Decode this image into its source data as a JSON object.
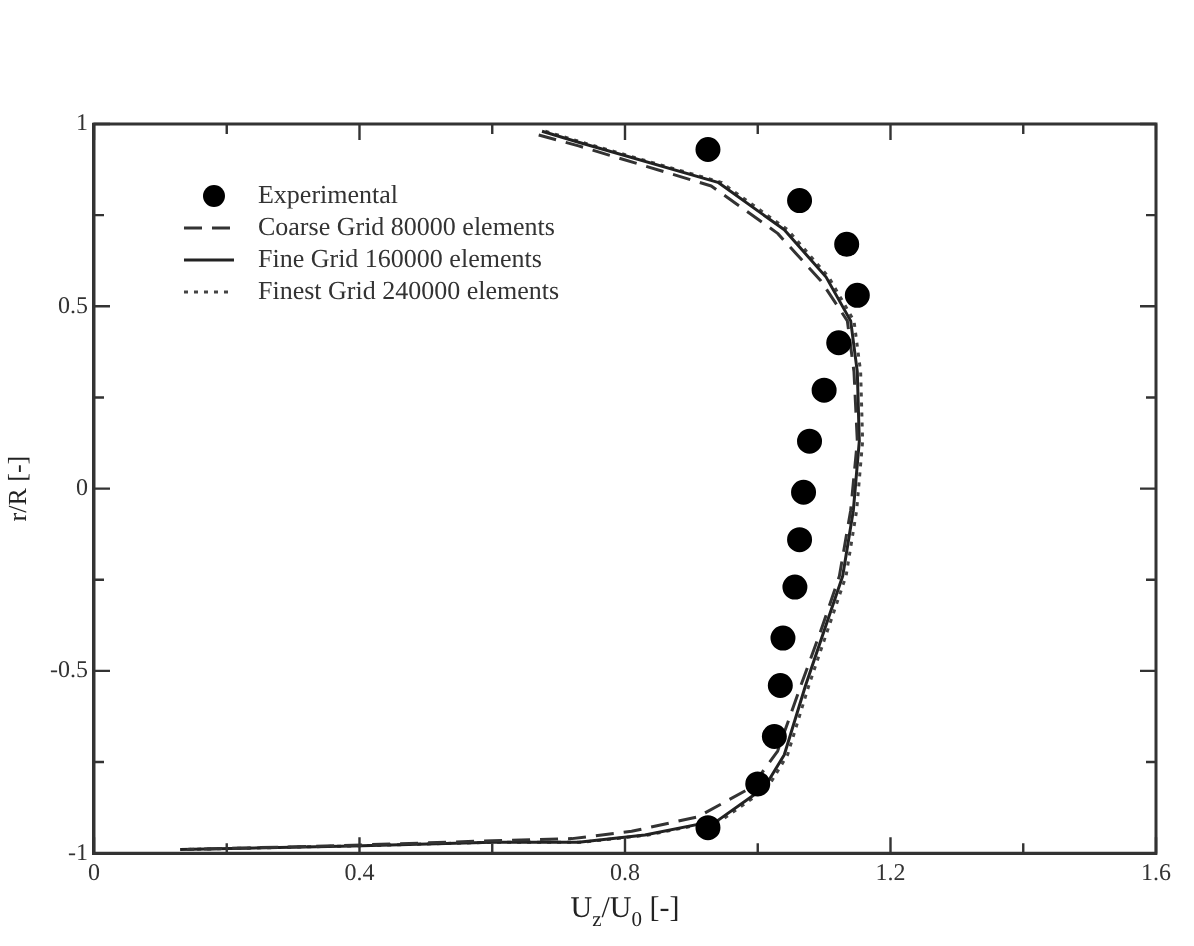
{
  "chart_data": {
    "type": "line",
    "xlabel": "U$_{z}$/U$_{0}$ [-]",
    "ylabel": "r/R [-]",
    "xlim": [
      0,
      1.6
    ],
    "ylim": [
      -1,
      1
    ],
    "xticks": [
      0,
      {
        "value": 0.2,
        "label": null
      },
      0.4,
      {
        "value": 0.6,
        "label": null
      },
      0.8,
      {
        "value": 1.0,
        "label": null
      },
      1.2,
      {
        "value": 1.4,
        "label": null
      },
      1.6
    ],
    "yticks": [
      -1,
      {
        "value": -0.75,
        "label": null
      },
      -0.5,
      {
        "value": -0.25,
        "label": null
      },
      0,
      {
        "value": 0.25,
        "label": null
      },
      0.5,
      {
        "value": 0.75,
        "label": null
      },
      1
    ],
    "grid": false,
    "legend": "top left",
    "series": [
      {
        "name": "Experimental",
        "type": "scatter",
        "marker": "circle",
        "color": "#000000",
        "x": [
          0.925,
          1.063,
          1.134,
          1.15,
          1.122,
          1.1,
          1.078,
          1.069,
          1.063,
          1.056,
          1.038,
          1.034,
          1.025,
          1.0,
          0.925
        ],
        "values": [
          0.93,
          0.79,
          0.67,
          0.53,
          0.4,
          0.27,
          0.13,
          -0.01,
          -0.14,
          -0.27,
          -0.41,
          -0.54,
          -0.68,
          -0.81,
          -0.93
        ]
      },
      {
        "name": "Coarse Grid 80000 elements",
        "type": "line",
        "marker": "none",
        "line_style": "dashed",
        "color": "#333333",
        "x": [
          0.67,
          0.73,
          0.93,
          1.03,
          1.095,
          1.135,
          1.145,
          1.15,
          1.14,
          1.123,
          1.095,
          1.065,
          1.03,
          0.99,
          0.91,
          0.81,
          0.72,
          0.6,
          0.39,
          0.14
        ],
        "values": [
          0.97,
          0.94,
          0.83,
          0.7,
          0.57,
          0.46,
          0.32,
          0.13,
          -0.06,
          -0.24,
          -0.39,
          -0.54,
          -0.72,
          -0.82,
          -0.9,
          -0.94,
          -0.96,
          -0.966,
          -0.978,
          -0.99
        ]
      },
      {
        "name": "Fine Grid 160000 elements",
        "type": "line",
        "marker": "none",
        "line_style": "solid",
        "color": "#222222",
        "x": [
          0.675,
          0.73,
          0.94,
          1.04,
          1.103,
          1.14,
          1.15,
          1.153,
          1.144,
          1.128,
          1.1,
          1.072,
          1.04,
          1.01,
          0.94,
          0.83,
          0.73,
          0.6,
          0.39,
          0.13
        ],
        "values": [
          0.98,
          0.95,
          0.84,
          0.71,
          0.58,
          0.46,
          0.32,
          0.13,
          -0.06,
          -0.24,
          -0.39,
          -0.54,
          -0.73,
          -0.82,
          -0.91,
          -0.95,
          -0.97,
          -0.97,
          -0.98,
          -0.99
        ]
      },
      {
        "name": "Finest Grid 240000 elements",
        "type": "line",
        "marker": "none",
        "line_style": "dotted",
        "color": "#444444",
        "x": [
          0.68,
          0.735,
          0.945,
          1.045,
          1.107,
          1.145,
          1.155,
          1.158,
          1.149,
          1.133,
          1.105,
          1.077,
          1.045,
          1.015,
          0.945,
          0.835,
          0.735,
          0.6,
          0.39,
          0.13
        ],
        "values": [
          0.98,
          0.95,
          0.84,
          0.71,
          0.58,
          0.46,
          0.32,
          0.13,
          -0.06,
          -0.24,
          -0.39,
          -0.54,
          -0.73,
          -0.82,
          -0.91,
          -0.95,
          -0.97,
          -0.97,
          -0.98,
          -0.99
        ]
      }
    ]
  }
}
